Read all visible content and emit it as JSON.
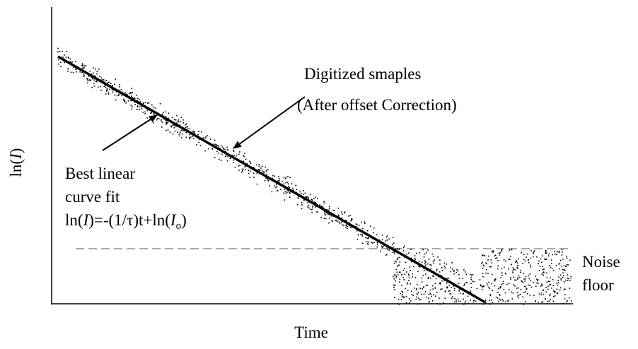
{
  "y_axis_label": [
    "ln(",
    "I",
    ")"
  ],
  "x_axis_label": "Time",
  "samples_label": [
    "Digitized smaples",
    "(After offset Correction)"
  ],
  "fit_label": [
    "Best linear",
    "curve fit"
  ],
  "fit_equation": [
    "ln(",
    "I",
    ")=-(1/τ)t+ln(",
    "I",
    "o",
    ")"
  ],
  "noise_label": [
    "Noise",
    "floor"
  ]
}
